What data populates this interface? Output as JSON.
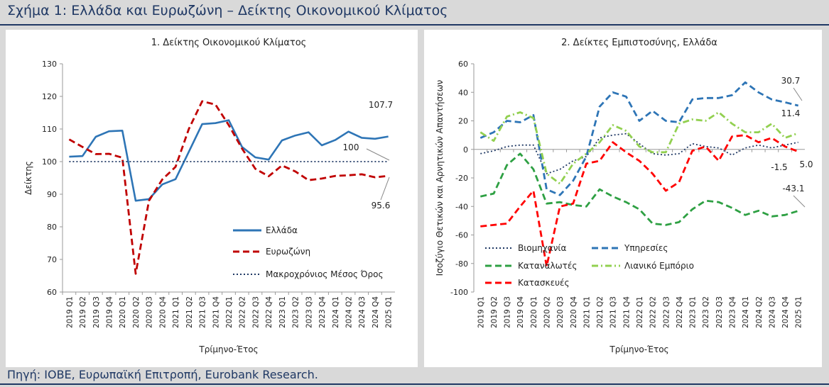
{
  "figure_title": "Σχήμα 1: Ελλάδα και Ευρωζώνη – Δείκτης Οικονομικού Κλίματος",
  "source": "Πηγή: ΙΟΒΕ, Ευρωπαϊκή Επιτροπή, Eurobank Research.",
  "chart_data": [
    {
      "type": "line",
      "title": "1. Δείκτης Οικονομικού Κλίματος",
      "xlabel": "Τρίμηνο-Έτος",
      "ylabel": "Δείκτης",
      "ylim": [
        60,
        130
      ],
      "yticks": [
        60,
        70,
        80,
        90,
        100,
        110,
        120,
        130
      ],
      "categories": [
        "2019 Q1",
        "2019 Q2",
        "2019 Q3",
        "2019 Q4",
        "2020 Q1",
        "2020 Q2",
        "2020 Q3",
        "2020 Q4",
        "2021 Q1",
        "2021 Q2",
        "2021 Q3",
        "2021 Q4",
        "2022 Q1",
        "2022 Q2",
        "2022 Q3",
        "2022 Q4",
        "2023 Q1",
        "2023 Q2",
        "2023 Q3",
        "2023 Q4",
        "2024 Q1",
        "2024 Q2",
        "2024 Q3",
        "2024 Q4",
        "2025 Q1"
      ],
      "grid": false,
      "legend_position": "bottom-right",
      "series": [
        {
          "name": "Ελλάδα",
          "color": "#2e75b6",
          "style": "solid",
          "values": [
            101.5,
            101.7,
            107.6,
            109.3,
            109.5,
            88.0,
            88.5,
            93.0,
            94.6,
            103.0,
            111.5,
            111.8,
            112.7,
            104.5,
            101.3,
            100.6,
            106.5,
            108.0,
            109.0,
            105.0,
            106.6,
            109.2,
            107.3,
            107.0,
            107.7
          ]
        },
        {
          "name": "Ευρωζώνη",
          "color": "#c00000",
          "style": "dashed",
          "values": [
            106.8,
            104.5,
            102.3,
            102.4,
            101.2,
            65.6,
            88.0,
            94.5,
            98.4,
            110.0,
            118.5,
            117.5,
            111.2,
            104.0,
            97.8,
            95.5,
            98.8,
            97.0,
            94.3,
            94.8,
            95.6,
            95.8,
            96.1,
            95.2,
            95.6
          ]
        },
        {
          "name": "Μακροχρόνιος Μέσος Όρος",
          "color": "#1f3864",
          "style": "dotted",
          "values": [
            100,
            100,
            100,
            100,
            100,
            100,
            100,
            100,
            100,
            100,
            100,
            100,
            100,
            100,
            100,
            100,
            100,
            100,
            100,
            100,
            100,
            100,
            100,
            100,
            100
          ]
        }
      ],
      "annotations": [
        {
          "text": "107.7"
        },
        {
          "text": "100"
        },
        {
          "text": "95.6"
        }
      ]
    },
    {
      "type": "line",
      "title": "2. Δείκτες Εμπιστοσύνης, Ελλάδα",
      "xlabel": "Τρίμηνο-Έτος",
      "ylabel": "Ισοζύγιο Θετικών και Αρνητικών Απαντήσεων",
      "ylim": [
        -100,
        60
      ],
      "yticks": [
        -100,
        -80,
        -60,
        -40,
        -20,
        0,
        20,
        40,
        60
      ],
      "categories": [
        "2019 Q1",
        "2019 Q2",
        "2019 Q3",
        "2019 Q4",
        "2020 Q1",
        "2020 Q2",
        "2020 Q3",
        "2020 Q4",
        "2021 Q1",
        "2021 Q2",
        "2021 Q3",
        "2021 Q4",
        "2022 Q1",
        "2022 Q2",
        "2022 Q3",
        "2022 Q4",
        "2023 Q1",
        "2023 Q2",
        "2023 Q3",
        "2023 Q4",
        "2024 Q1",
        "2024 Q2",
        "2024 Q3",
        "2024 Q4",
        "2025 Q1"
      ],
      "grid": false,
      "legend_position": "bottom",
      "series": [
        {
          "name": "Βιομηχανία",
          "color": "#1f3864",
          "style": "dotted",
          "values": [
            -3,
            -1,
            2,
            3,
            3,
            -17,
            -14,
            -8,
            -5,
            8,
            10,
            11,
            4,
            -3,
            -4,
            -3,
            4,
            2,
            1,
            -4,
            1,
            3,
            1,
            3,
            5.0
          ]
        },
        {
          "name": "Υπηρεσίες",
          "color": "#2e75b6",
          "style": "dashed",
          "values": [
            8,
            12,
            20,
            19,
            24,
            -28,
            -32,
            -22,
            -5,
            30,
            40,
            37,
            20,
            27,
            20,
            19,
            35,
            36,
            36,
            38,
            47,
            40,
            35,
            33,
            30.7
          ]
        },
        {
          "name": "Καταναλωτές",
          "color": "#2ea043",
          "style": "dashed",
          "values": [
            -33,
            -31,
            -11,
            -3,
            -14,
            -38,
            -37,
            -39,
            -40,
            -28,
            -33,
            -37,
            -42,
            -52,
            -53,
            -51,
            -42,
            -36,
            -37,
            -41,
            -46,
            -43,
            -47,
            -46,
            -43.1
          ]
        },
        {
          "name": "Λιανικό Εμπόριο",
          "color": "#92d050",
          "style": "dash-dot",
          "values": [
            12,
            6,
            23,
            26,
            22,
            -17,
            -24,
            -10,
            -3,
            5,
            17,
            13,
            2,
            -2,
            -2,
            18,
            21,
            20,
            26,
            18,
            12,
            12,
            18,
            8,
            11.4
          ]
        },
        {
          "name": "Κατασκευές",
          "color": "#ff0000",
          "style": "dashed",
          "values": [
            -54,
            -53,
            -52,
            -40,
            -29,
            -82,
            -40,
            -38,
            -10,
            -8,
            5,
            -2,
            -8,
            -17,
            -29,
            -23,
            -1,
            2,
            -8,
            9,
            10,
            5,
            8,
            2,
            -1.5
          ]
        }
      ],
      "annotations": [
        {
          "text": "30.7"
        },
        {
          "text": "11.4"
        },
        {
          "text": "-1.5"
        },
        {
          "text": "5.0"
        },
        {
          "text": "-43.1"
        }
      ]
    }
  ]
}
